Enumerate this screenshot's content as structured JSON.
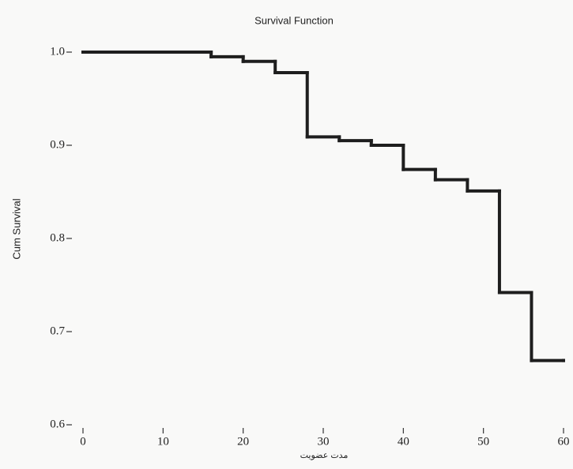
{
  "chart_data": {
    "type": "step",
    "title": "Survival Function",
    "x_label": "مدت عضویت",
    "y_label": "Cum Survival",
    "x": [
      0,
      16,
      20,
      24,
      28,
      32,
      36,
      40,
      44,
      48,
      52,
      56,
      60
    ],
    "values": [
      1.0,
      0.995,
      0.99,
      0.978,
      0.909,
      0.905,
      0.9,
      0.874,
      0.863,
      0.851,
      0.742,
      0.669,
      0.669
    ],
    "color": "#1e1e1e",
    "xlim": [
      0,
      60
    ],
    "xticks": [
      0,
      10,
      20,
      30,
      40,
      50,
      60
    ],
    "ylim": [
      0.6,
      1.0
    ],
    "yticks": [
      {
        "value": 1.0,
        "label": "1.0"
      },
      0.9,
      0.8,
      0.7,
      0.6
    ]
  }
}
